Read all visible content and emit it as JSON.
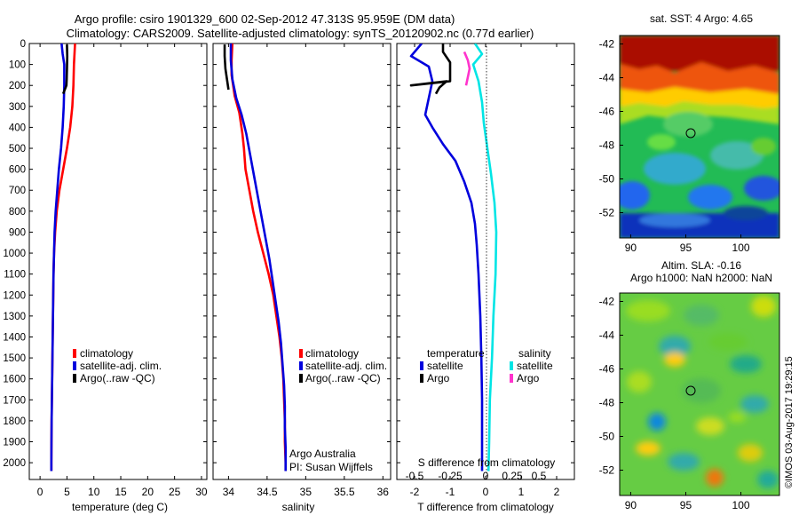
{
  "header": {
    "title_line1": "Argo profile: csiro 1901329_600 02-Sep-2012 47.313S 95.959E (DM data)",
    "title_line2": "Climatology: CARS2009. Satellite-adjusted climatology: synTS_20120902.nc (0.77d earlier)"
  },
  "watermark": "©IMOS 03-Aug-2017 19:29:15",
  "colors": {
    "climatology": "#ff0000",
    "satellite": "#0000dd",
    "argo": "#000000",
    "salinity_satellite": "#00e5e5",
    "salinity_argo": "#ff33cc"
  },
  "chart_data": [
    {
      "type": "line",
      "id": "temperature",
      "xlabel": "temperature (deg C)",
      "xlim": [
        -2,
        31
      ],
      "xticks": [
        0,
        5,
        10,
        15,
        20,
        25,
        30
      ],
      "ylim": [
        2080,
        0
      ],
      "yticks": [
        0,
        100,
        200,
        300,
        400,
        500,
        600,
        700,
        800,
        900,
        1000,
        1100,
        1200,
        1300,
        1400,
        1500,
        1600,
        1700,
        1800,
        1900,
        2000
      ],
      "legend": [
        "climatology",
        "satellite-adj. clim.",
        "Argo(..raw -QC)"
      ],
      "series": [
        {
          "name": "climatology",
          "color": "#ff0000",
          "points": [
            [
              6.5,
              0
            ],
            [
              6.3,
              100
            ],
            [
              6.2,
              200
            ],
            [
              6.0,
              300
            ],
            [
              5.6,
              400
            ],
            [
              5.0,
              500
            ],
            [
              4.3,
              600
            ],
            [
              3.6,
              700
            ],
            [
              3.1,
              800
            ],
            [
              2.8,
              900
            ],
            [
              2.6,
              1000
            ],
            [
              2.5,
              1100
            ],
            [
              2.45,
              1200
            ],
            [
              2.4,
              1300
            ],
            [
              2.35,
              1400
            ],
            [
              2.3,
              1500
            ],
            [
              2.25,
              1600
            ],
            [
              2.2,
              1700
            ],
            [
              2.15,
              1800
            ],
            [
              2.12,
              1900
            ],
            [
              2.1,
              2000
            ],
            [
              2.1,
              2040
            ]
          ]
        },
        {
          "name": "satellite-adj. clim.",
          "color": "#0000dd",
          "points": [
            [
              4.0,
              0
            ],
            [
              4.2,
              50
            ],
            [
              4.5,
              100
            ],
            [
              4.5,
              200
            ],
            [
              4.4,
              300
            ],
            [
              4.2,
              400
            ],
            [
              3.9,
              500
            ],
            [
              3.5,
              600
            ],
            [
              3.2,
              700
            ],
            [
              2.9,
              800
            ],
            [
              2.7,
              900
            ],
            [
              2.6,
              1000
            ],
            [
              2.5,
              1100
            ],
            [
              2.45,
              1200
            ],
            [
              2.4,
              1300
            ],
            [
              2.35,
              1400
            ],
            [
              2.3,
              1500
            ],
            [
              2.25,
              1600
            ],
            [
              2.2,
              1700
            ],
            [
              2.15,
              1800
            ],
            [
              2.12,
              1900
            ],
            [
              2.1,
              2000
            ],
            [
              2.1,
              2040
            ]
          ]
        },
        {
          "name": "Argo(..raw -QC)",
          "color": "#000000",
          "points": [
            [
              5.0,
              5
            ],
            [
              5.05,
              60
            ],
            [
              5.0,
              120
            ],
            [
              4.95,
              170
            ],
            [
              4.9,
              200
            ],
            [
              4.3,
              240
            ]
          ]
        }
      ]
    },
    {
      "type": "line",
      "id": "salinity",
      "xlabel": "salinity",
      "xlim": [
        33.8,
        36.1
      ],
      "xticks": [
        34,
        34.5,
        35,
        35.5,
        36
      ],
      "ylim": [
        2080,
        0
      ],
      "legend": [
        "climatology",
        "satellite-adj. clim.",
        "Argo(..raw -QC)"
      ],
      "annotation": [
        "Argo Australia",
        "PI: Susan Wijffels"
      ],
      "series": [
        {
          "name": "climatology",
          "color": "#ff0000",
          "points": [
            [
              34.05,
              0
            ],
            [
              34.04,
              80
            ],
            [
              34.04,
              150
            ],
            [
              34.08,
              250
            ],
            [
              34.14,
              330
            ],
            [
              34.18,
              430
            ],
            [
              34.2,
              500
            ],
            [
              34.22,
              600
            ],
            [
              34.27,
              700
            ],
            [
              34.32,
              800
            ],
            [
              34.38,
              900
            ],
            [
              34.45,
              1000
            ],
            [
              34.52,
              1100
            ],
            [
              34.58,
              1200
            ],
            [
              34.62,
              1300
            ],
            [
              34.66,
              1400
            ],
            [
              34.69,
              1500
            ],
            [
              34.71,
              1600
            ],
            [
              34.72,
              1700
            ],
            [
              34.73,
              1800
            ],
            [
              34.73,
              1900
            ],
            [
              34.74,
              2000
            ],
            [
              34.74,
              2040
            ]
          ]
        },
        {
          "name": "satellite-adj. clim.",
          "color": "#0000dd",
          "points": [
            [
              34.03,
              0
            ],
            [
              34.03,
              80
            ],
            [
              34.05,
              170
            ],
            [
              34.1,
              260
            ],
            [
              34.17,
              340
            ],
            [
              34.23,
              430
            ],
            [
              34.28,
              530
            ],
            [
              34.33,
              630
            ],
            [
              34.38,
              730
            ],
            [
              34.43,
              830
            ],
            [
              34.48,
              930
            ],
            [
              34.53,
              1030
            ],
            [
              34.57,
              1130
            ],
            [
              34.61,
              1230
            ],
            [
              34.65,
              1330
            ],
            [
              34.68,
              1430
            ],
            [
              34.7,
              1530
            ],
            [
              34.72,
              1630
            ],
            [
              34.73,
              1730
            ],
            [
              34.73,
              1830
            ],
            [
              34.74,
              1930
            ],
            [
              34.74,
              2040
            ]
          ]
        },
        {
          "name": "Argo(..raw -QC)",
          "color": "#000000",
          "points": [
            [
              33.95,
              5
            ],
            [
              33.95,
              60
            ],
            [
              33.96,
              120
            ],
            [
              33.98,
              170
            ],
            [
              34.0,
              220
            ]
          ]
        }
      ]
    },
    {
      "type": "line",
      "id": "difference",
      "xlabel": "T difference from climatology",
      "xlabel_top": "S difference from climatology",
      "xlim": [
        -2.5,
        2.5
      ],
      "xticks": [
        -2,
        -1,
        0,
        1,
        2
      ],
      "s_ticks": [
        "-0.5",
        "-0.25",
        "0",
        "0.25",
        "0.5"
      ],
      "ylim": [
        2080,
        0
      ],
      "legend_left_title": "temperature",
      "legend_right_title": "salinity",
      "legend_left": [
        "satellite",
        "Argo"
      ],
      "legend_right": [
        "satellite",
        "Argo"
      ],
      "series": [
        {
          "name": "temperature satellite",
          "color": "#0000dd",
          "points": [
            [
              -1.8,
              0
            ],
            [
              -2.1,
              60
            ],
            [
              -1.6,
              110
            ],
            [
              -1.5,
              180
            ],
            [
              -1.6,
              260
            ],
            [
              -1.7,
              340
            ],
            [
              -1.5,
              400
            ],
            [
              -1.2,
              480
            ],
            [
              -0.85,
              560
            ],
            [
              -0.6,
              660
            ],
            [
              -0.4,
              760
            ],
            [
              -0.3,
              860
            ],
            [
              -0.25,
              960
            ],
            [
              -0.2,
              1100
            ],
            [
              -0.15,
              1300
            ],
            [
              -0.12,
              1500
            ],
            [
              -0.1,
              1700
            ],
            [
              -0.1,
              1900
            ],
            [
              -0.1,
              2040
            ]
          ]
        },
        {
          "name": "temperature Argo",
          "color": "#000000",
          "points": [
            [
              -1.2,
              0
            ],
            [
              -1.2,
              40
            ],
            [
              -1.0,
              90
            ],
            [
              -1.0,
              150
            ],
            [
              -1.0,
              180
            ],
            [
              -2.1,
              200
            ],
            [
              -1.6,
              190
            ],
            [
              -1.1,
              180
            ],
            [
              -1.3,
              210
            ],
            [
              -1.4,
              240
            ]
          ]
        },
        {
          "name": "salinity satellite",
          "color": "#00e5e5",
          "points": [
            [
              -0.3,
              0
            ],
            [
              -0.1,
              50
            ],
            [
              -0.35,
              100
            ],
            [
              -0.2,
              180
            ],
            [
              -0.1,
              280
            ],
            [
              -0.05,
              380
            ],
            [
              0.05,
              500
            ],
            [
              0.15,
              620
            ],
            [
              0.25,
              760
            ],
            [
              0.3,
              900
            ],
            [
              0.28,
              1100
            ],
            [
              0.22,
              1300
            ],
            [
              0.18,
              1500
            ],
            [
              0.12,
              1700
            ],
            [
              0.1,
              1900
            ],
            [
              0.08,
              2040
            ]
          ]
        },
        {
          "name": "salinity Argo",
          "color": "#ff33cc",
          "points": [
            [
              -0.6,
              40
            ],
            [
              -0.5,
              80
            ],
            [
              -0.45,
              120
            ],
            [
              -0.5,
              160
            ],
            [
              -0.55,
              200
            ]
          ]
        }
      ]
    },
    {
      "type": "heatmap",
      "id": "sst_map",
      "title": "sat. SST: 4 Argo: 4.65",
      "xlim": [
        89,
        103.5
      ],
      "ylim": [
        -53.5,
        -41.5
      ],
      "xticks": [
        90,
        95,
        100
      ],
      "yticks": [
        -42,
        -44,
        -46,
        -48,
        -50,
        -52
      ],
      "marker": [
        96,
        -47.3
      ]
    },
    {
      "type": "heatmap",
      "id": "sla_map",
      "title_line1": "Altim. SLA: -0.16",
      "title_line2": "Argo h1000: NaN h2000: NaN",
      "xlim": [
        89,
        103.5
      ],
      "ylim": [
        -53.5,
        -41.5
      ],
      "xticks": [
        90,
        95,
        100
      ],
      "yticks": [
        -42,
        -44,
        -46,
        -48,
        -50,
        -52
      ],
      "marker": [
        96,
        -47.3
      ]
    }
  ]
}
